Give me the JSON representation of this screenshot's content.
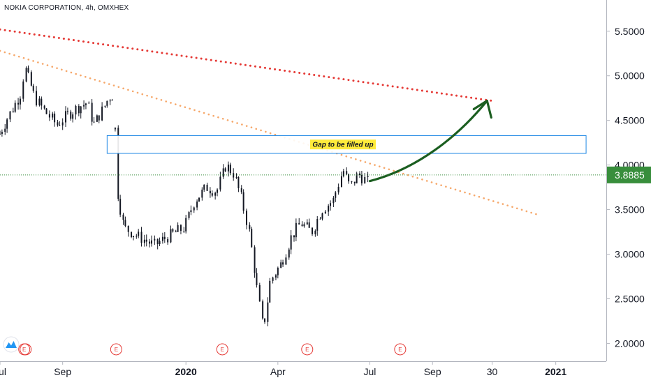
{
  "chart_header": {
    "symbol_title": "NOKIA CORPORATION, 4h, OMXHEX"
  },
  "colors": {
    "candle": "#131722",
    "upper_trendline": "#e53935",
    "lower_trendline": "#f6a86b",
    "gap_box_border": "#1e88e5",
    "gap_label_bg": "#ffeb3b",
    "arrow": "#1b5e20",
    "last_price_bg": "#388e3c",
    "earnings_marker": "#e53935"
  },
  "annotations": {
    "gap_label": "Gap to be filled up"
  },
  "last_price_label": "3.8885",
  "earnings_marker_label": "E",
  "chart_data": {
    "type": "candlestick",
    "title": "NOKIA CORPORATION, 4h, OMXHEX",
    "ylim": [
      1.8,
      5.85
    ],
    "y_ticks": [
      "5.5000",
      "5.0000",
      "4.5000",
      "4.0000",
      "3.5000",
      "3.0000",
      "2.5000",
      "2.0000"
    ],
    "y_tick_values": [
      5.5,
      5.0,
      4.5,
      4.0,
      3.5,
      3.0,
      2.5,
      2.0
    ],
    "x_ticks": [
      "Jul",
      "Sep",
      "2020",
      "Apr",
      "Jul",
      "Sep",
      "30",
      "2021"
    ],
    "x_tick_bold": [
      false,
      false,
      true,
      false,
      false,
      false,
      false,
      true
    ],
    "x_domain": [
      "2019-07-01",
      "2021-02-20"
    ],
    "x_tick_dates": [
      "2019-07-01",
      "2019-09-01",
      "2020-01-01",
      "2020-04-01",
      "2020-07-01",
      "2020-09-01",
      "2020-10-30",
      "2021-01-01"
    ],
    "last_price": 3.8885,
    "price_path": [
      [
        "2019-07-01",
        4.35
      ],
      [
        "2019-07-10",
        4.55
      ],
      [
        "2019-07-22",
        4.8
      ],
      [
        "2019-07-26",
        5.1
      ],
      [
        "2019-08-05",
        4.75
      ],
      [
        "2019-08-15",
        4.6
      ],
      [
        "2019-08-27",
        4.45
      ],
      [
        "2019-09-05",
        4.55
      ],
      [
        "2019-09-17",
        4.65
      ],
      [
        "2019-09-26",
        4.7
      ],
      [
        "2019-10-02",
        4.45
      ],
      [
        "2019-10-10",
        4.6
      ],
      [
        "2019-10-17",
        4.75
      ],
      [
        "2019-10-23",
        4.8
      ],
      [
        "2019-10-24",
        3.8
      ],
      [
        "2019-11-01",
        3.3
      ],
      [
        "2019-11-15",
        3.2
      ],
      [
        "2019-12-01",
        3.1
      ],
      [
        "2019-12-15",
        3.2
      ],
      [
        "2019-12-31",
        3.3
      ],
      [
        "2020-01-10",
        3.6
      ],
      [
        "2020-01-22",
        3.75
      ],
      [
        "2020-02-01",
        3.7
      ],
      [
        "2020-02-10",
        4.0
      ],
      [
        "2020-02-18",
        3.9
      ],
      [
        "2020-02-26",
        3.6
      ],
      [
        "2020-03-05",
        3.2
      ],
      [
        "2020-03-12",
        2.6
      ],
      [
        "2020-03-18",
        2.15
      ],
      [
        "2020-03-25",
        2.7
      ],
      [
        "2020-04-05",
        2.9
      ],
      [
        "2020-04-15",
        3.2
      ],
      [
        "2020-04-24",
        3.35
      ],
      [
        "2020-05-05",
        3.25
      ],
      [
        "2020-05-15",
        3.5
      ],
      [
        "2020-05-26",
        3.6
      ],
      [
        "2020-06-05",
        3.95
      ],
      [
        "2020-06-12",
        3.75
      ],
      [
        "2020-06-20",
        3.9
      ],
      [
        "2020-06-30",
        3.8
      ]
    ],
    "earnings_dates": [
      "2019-07-25",
      "2019-10-24",
      "2020-02-06",
      "2020-04-30",
      "2020-07-31"
    ],
    "trendlines": [
      {
        "style": "dotted",
        "color": "#e53935",
        "points": [
          [
            "2019-07-01",
            5.52
          ],
          [
            "2020-10-30",
            4.72
          ]
        ]
      },
      {
        "style": "dotted",
        "color": "#f6a86b",
        "points": [
          [
            "2019-07-01",
            5.28
          ],
          [
            "2020-12-15",
            3.44
          ]
        ]
      }
    ],
    "gap_zone": {
      "start": "2019-10-15",
      "end": "2021-01-31",
      "low": 4.13,
      "high": 4.33
    },
    "projection_arrow": [
      [
        "2020-07-01",
        3.82
      ],
      [
        "2020-08-15",
        3.95
      ],
      [
        "2020-09-25",
        4.3
      ],
      [
        "2020-10-25",
        4.72
      ]
    ],
    "grid": false,
    "legend": "none"
  }
}
